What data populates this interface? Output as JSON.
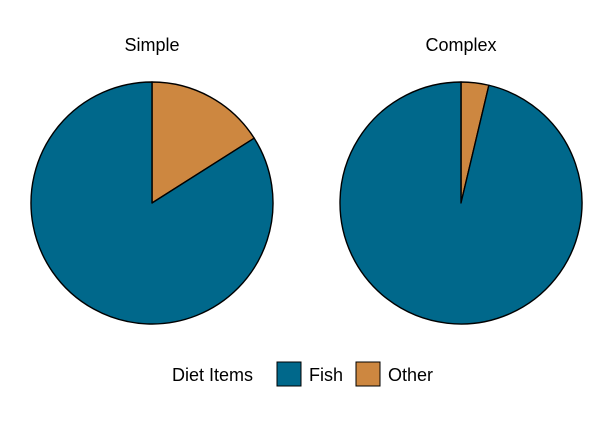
{
  "chart_data": [
    {
      "type": "pie",
      "title": "Simple",
      "categories": [
        "Fish",
        "Other"
      ],
      "values": [
        0.84,
        0.16
      ],
      "start_angle": "12 o'clock",
      "direction": "clockwise, Other first"
    },
    {
      "type": "pie",
      "title": "Complex",
      "categories": [
        "Fish",
        "Other"
      ],
      "values": [
        0.963,
        0.037
      ],
      "start_angle": "12 o'clock",
      "direction": "clockwise, Other first"
    }
  ],
  "legend": {
    "title": "Diet Items",
    "placement": "bottom",
    "items": [
      {
        "label": "Fish",
        "color": "#00688B"
      },
      {
        "label": "Other",
        "color": "#CD8740"
      }
    ]
  },
  "colors": {
    "Fish": "#00688B",
    "Other": "#CD8740",
    "outline": "#000000"
  }
}
